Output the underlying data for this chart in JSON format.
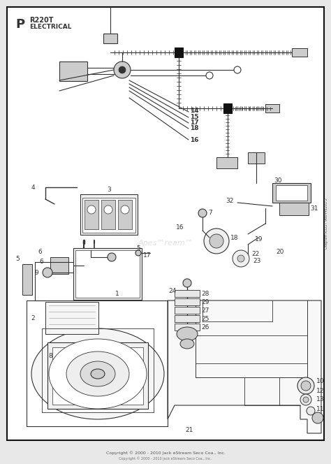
{
  "title_letter": "P",
  "title_line1": "R220T",
  "title_line2": "ELECTRICAL",
  "watermark": "Apes™ream™",
  "footer": "Copyright © 2000 - 2010 Jack eStream Seco Coa., Inc.",
  "vertical_label": "Diagram R322T 966446201-2",
  "bg": "#ffffff",
  "border": "#111111",
  "ink": "#333333",
  "gray1": "#aaaaaa",
  "gray2": "#cccccc",
  "gray3": "#888888",
  "fig_w": 4.74,
  "fig_h": 6.64,
  "dpi": 100
}
